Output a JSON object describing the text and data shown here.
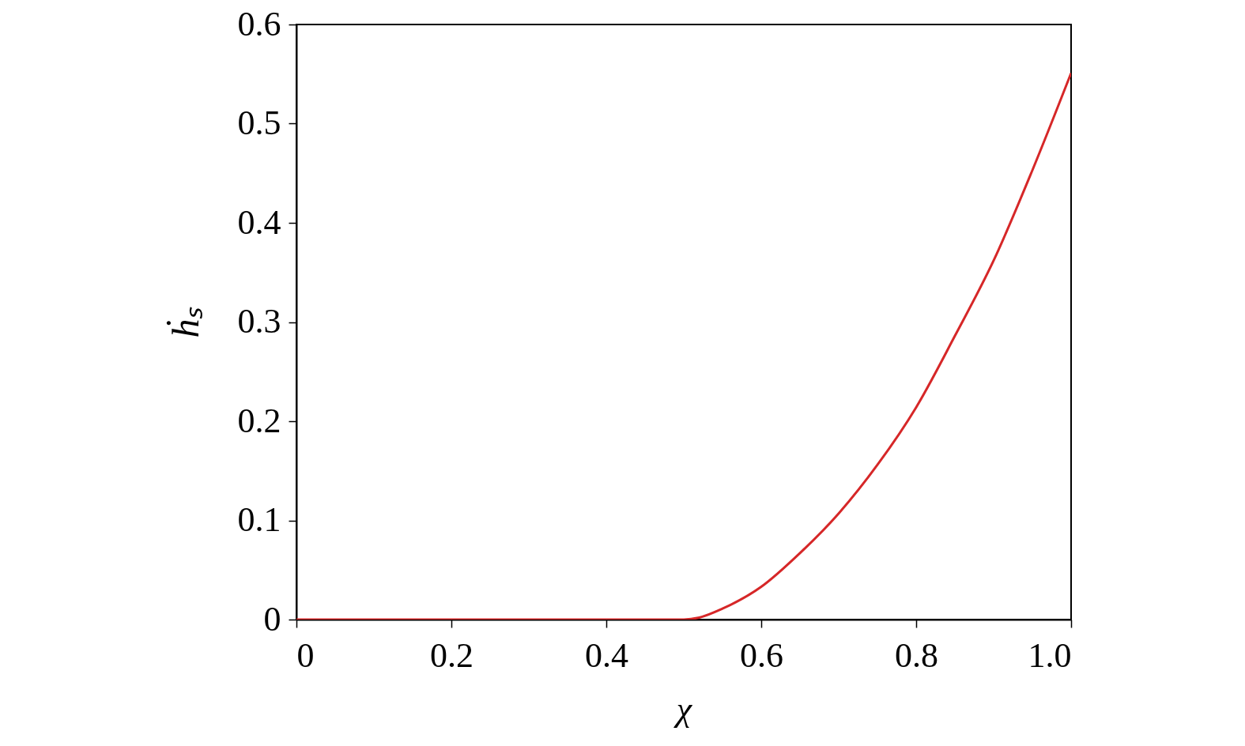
{
  "chart_data": {
    "type": "line",
    "xlabel": "χ",
    "ylabel": "ḣₛ",
    "x": [
      0,
      0.1,
      0.2,
      0.3,
      0.4,
      0.5,
      0.52,
      0.55,
      0.6,
      0.65,
      0.7,
      0.75,
      0.8,
      0.85,
      0.9,
      0.95,
      1.0
    ],
    "series": [
      {
        "color": "#d62728",
        "values": [
          0,
          0,
          0,
          0,
          0,
          0,
          0.002,
          0.011,
          0.033,
          0.067,
          0.107,
          0.156,
          0.214,
          0.286,
          0.362,
          0.453,
          0.551
        ]
      }
    ],
    "xlim": [
      0,
      1
    ],
    "xticks": [
      {
        "value": 0,
        "label": "0"
      },
      0.2,
      0.4,
      0.6,
      0.8,
      {
        "value": 1,
        "label": "1.0"
      }
    ],
    "ylim": [
      0,
      0.6
    ],
    "yticks": [
      {
        "value": 0,
        "label": "0"
      },
      0.1,
      0.2,
      0.3,
      0.4,
      0.5,
      0.6
    ],
    "grid": false,
    "marker": "none",
    "line_style": "solid"
  }
}
